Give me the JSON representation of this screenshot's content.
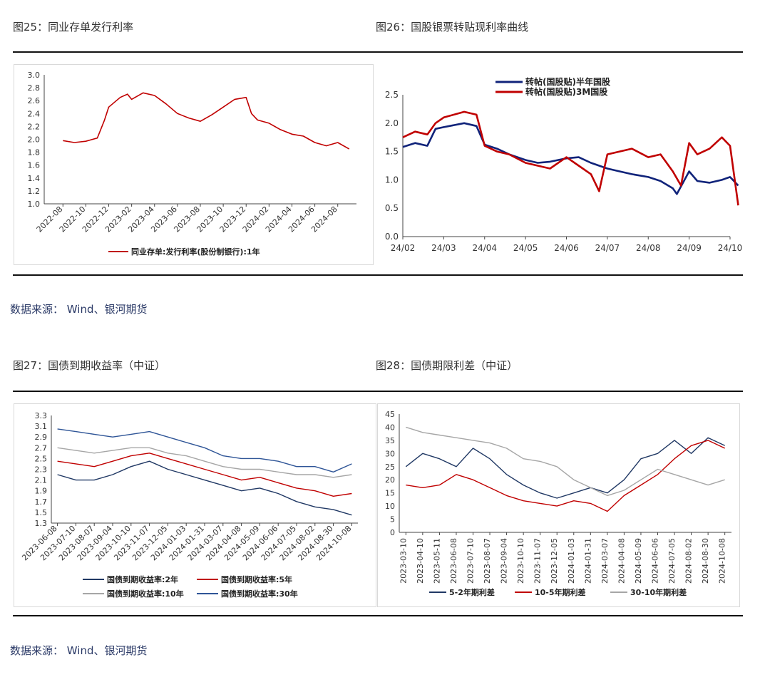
{
  "source_label": "数据来源：  Wind、银河期货",
  "colors": {
    "red": "#c00000",
    "navy": "#10237a",
    "navy2": "#203864",
    "grey": "#a6a6a6",
    "blue30": "#2f5597",
    "axis": "#333333"
  },
  "figures": [
    {
      "id": "fig25",
      "title": "图25：同业存单发行利率"
    },
    {
      "id": "fig26",
      "title": "图26：国股银票转贴现利率曲线"
    },
    {
      "id": "fig27",
      "title": "图27：国债到期收益率（中证）"
    },
    {
      "id": "fig28",
      "title": "图28：国债期限利差（中证）"
    }
  ],
  "chart_data": [
    {
      "id": "fig25",
      "type": "line",
      "x": [
        "2022-08",
        "2022-10",
        "2022-12",
        "2023-02",
        "2023-04",
        "2023-06",
        "2023-08",
        "2023-10",
        "2023-12",
        "2024-02",
        "2024-04",
        "2024-06",
        "2024-08"
      ],
      "ylim": [
        1.0,
        3.0
      ],
      "yticks": [
        "1.0",
        "1.2",
        "1.4",
        "1.6",
        "1.8",
        "2.0",
        "2.2",
        "2.4",
        "2.6",
        "2.8",
        "3.0"
      ],
      "grid": false,
      "legend_position": "bottom",
      "series": [
        {
          "name": "同业存单:发行利率(股份制银行):1年",
          "color": "#c00000",
          "points": [
            [
              "2022-08",
              1.98
            ],
            [
              "2022-09",
              1.95
            ],
            [
              "2022-10",
              1.97
            ],
            [
              "2022-11",
              2.02
            ],
            [
              "2022-11-20",
              2.3
            ],
            [
              "2022-12",
              2.5
            ],
            [
              "2023-01",
              2.65
            ],
            [
              "2023-01-20",
              2.7
            ],
            [
              "2023-02",
              2.62
            ],
            [
              "2023-03",
              2.72
            ],
            [
              "2023-04",
              2.68
            ],
            [
              "2023-05",
              2.55
            ],
            [
              "2023-06",
              2.4
            ],
            [
              "2023-07",
              2.33
            ],
            [
              "2023-08",
              2.28
            ],
            [
              "2023-09",
              2.38
            ],
            [
              "2023-10",
              2.5
            ],
            [
              "2023-11",
              2.62
            ],
            [
              "2023-12",
              2.65
            ],
            [
              "2023-12-15",
              2.4
            ],
            [
              "2024-01",
              2.3
            ],
            [
              "2024-02",
              2.25
            ],
            [
              "2024-03",
              2.15
            ],
            [
              "2024-04",
              2.08
            ],
            [
              "2024-05",
              2.05
            ],
            [
              "2024-06",
              1.95
            ],
            [
              "2024-07",
              1.9
            ],
            [
              "2024-08",
              1.95
            ],
            [
              "2024-09",
              1.85
            ]
          ]
        }
      ]
    },
    {
      "id": "fig26",
      "type": "line",
      "x": [
        "24/02",
        "24/03",
        "24/04",
        "24/05",
        "24/06",
        "24/07",
        "24/08",
        "24/09",
        "24/10"
      ],
      "ylim": [
        0.0,
        2.5
      ],
      "yticks": [
        "0.0",
        "0.5",
        "1.0",
        "1.5",
        "2.0",
        "2.5"
      ],
      "grid": false,
      "legend_position": "top",
      "series": [
        {
          "name": "转帖(国股贴)半年国股",
          "color": "#10237a",
          "points": [
            [
              "24/02",
              1.58
            ],
            [
              "24/02.3",
              1.65
            ],
            [
              "24/02.6",
              1.6
            ],
            [
              "24/02.8",
              1.9
            ],
            [
              "24/03",
              1.93
            ],
            [
              "24/03.5",
              2.0
            ],
            [
              "24/03.8",
              1.95
            ],
            [
              "24/04",
              1.62
            ],
            [
              "24/04.3",
              1.55
            ],
            [
              "24/04.6",
              1.45
            ],
            [
              "24/05",
              1.35
            ],
            [
              "24/05.3",
              1.3
            ],
            [
              "24/05.6",
              1.32
            ],
            [
              "24/06",
              1.38
            ],
            [
              "24/06.3",
              1.4
            ],
            [
              "24/06.6",
              1.3
            ],
            [
              "24/07",
              1.2
            ],
            [
              "24/07.3",
              1.15
            ],
            [
              "24/07.6",
              1.1
            ],
            [
              "24/08",
              1.05
            ],
            [
              "24/08.3",
              0.98
            ],
            [
              "24/08.6",
              0.85
            ],
            [
              "24/08.7",
              0.75
            ],
            [
              "24/09",
              1.15
            ],
            [
              "24/09.2",
              0.98
            ],
            [
              "24/09.5",
              0.95
            ],
            [
              "24/09.8",
              1.0
            ],
            [
              "24/10",
              1.05
            ],
            [
              "24/10.2",
              0.9
            ]
          ]
        },
        {
          "name": "转帖(国股贴)3M国股",
          "color": "#c00000",
          "points": [
            [
              "24/02",
              1.75
            ],
            [
              "24/02.3",
              1.85
            ],
            [
              "24/02.6",
              1.8
            ],
            [
              "24/02.8",
              2.0
            ],
            [
              "24/03",
              2.1
            ],
            [
              "24/03.5",
              2.2
            ],
            [
              "24/03.8",
              2.15
            ],
            [
              "24/04",
              1.6
            ],
            [
              "24/04.3",
              1.5
            ],
            [
              "24/04.6",
              1.45
            ],
            [
              "24/05",
              1.3
            ],
            [
              "24/05.3",
              1.25
            ],
            [
              "24/05.6",
              1.2
            ],
            [
              "24/06",
              1.4
            ],
            [
              "24/06.3",
              1.25
            ],
            [
              "24/06.6",
              1.1
            ],
            [
              "24/06.8",
              0.8
            ],
            [
              "24/07",
              1.45
            ],
            [
              "24/07.3",
              1.5
            ],
            [
              "24/07.6",
              1.55
            ],
            [
              "24/08",
              1.4
            ],
            [
              "24/08.3",
              1.45
            ],
            [
              "24/08.6",
              1.15
            ],
            [
              "24/08.8",
              0.9
            ],
            [
              "24/09",
              1.65
            ],
            [
              "24/09.2",
              1.45
            ],
            [
              "24/09.5",
              1.55
            ],
            [
              "24/09.8",
              1.75
            ],
            [
              "24/10",
              1.6
            ],
            [
              "24/10.2",
              0.55
            ]
          ]
        }
      ]
    },
    {
      "id": "fig27",
      "type": "line",
      "x": [
        "2023-06-08",
        "2023-07-10",
        "2023-08-07",
        "2023-09-04",
        "2023-10-10",
        "2023-11-07",
        "2023-12-05",
        "2024-01-03",
        "2024-01-31",
        "2024-03-07",
        "2024-04-08",
        "2024-05-09",
        "2024-06-06",
        "2024-07-05",
        "2024-08-02",
        "2024-08-30",
        "2024-10-08"
      ],
      "ylim": [
        1.3,
        3.3
      ],
      "yticks": [
        "1.3",
        "1.5",
        "1.7",
        "1.9",
        "2.1",
        "2.3",
        "2.5",
        "2.7",
        "2.9",
        "3.1",
        "3.3"
      ],
      "grid": false,
      "legend_position": "bottom",
      "series": [
        {
          "name": "国债到期收益率:2年",
          "color": "#203864",
          "values": [
            2.2,
            2.1,
            2.1,
            2.2,
            2.35,
            2.45,
            2.3,
            2.2,
            2.1,
            2.0,
            1.9,
            1.95,
            1.85,
            1.7,
            1.6,
            1.55,
            1.45
          ]
        },
        {
          "name": "国债到期收益率:5年",
          "color": "#c00000",
          "values": [
            2.45,
            2.4,
            2.35,
            2.45,
            2.55,
            2.6,
            2.5,
            2.4,
            2.3,
            2.2,
            2.1,
            2.15,
            2.05,
            1.95,
            1.9,
            1.8,
            1.85
          ]
        },
        {
          "name": "国债到期收益率:10年",
          "color": "#a6a6a6",
          "values": [
            2.7,
            2.65,
            2.6,
            2.65,
            2.7,
            2.7,
            2.6,
            2.55,
            2.45,
            2.35,
            2.3,
            2.3,
            2.25,
            2.2,
            2.2,
            2.15,
            2.2
          ]
        },
        {
          "name": "国债到期收益率:30年",
          "color": "#2f5597",
          "values": [
            3.05,
            3.0,
            2.95,
            2.9,
            2.95,
            3.0,
            2.9,
            2.8,
            2.7,
            2.55,
            2.5,
            2.5,
            2.45,
            2.35,
            2.35,
            2.25,
            2.4
          ]
        }
      ]
    },
    {
      "id": "fig28",
      "type": "line",
      "x": [
        "2023-03-10",
        "2023-04-10",
        "2023-05-11",
        "2023-06-08",
        "2023-07-10",
        "2023-08-07",
        "2023-09-04",
        "2023-10-10",
        "2023-11-07",
        "2023-12-05",
        "2024-01-03",
        "2024-01-31",
        "2024-03-07",
        "2024-04-08",
        "2024-05-09",
        "2024-06-06",
        "2024-07-05",
        "2024-08-02",
        "2024-08-30",
        "2024-10-08"
      ],
      "ylim": [
        0,
        45
      ],
      "yticks": [
        "0",
        "5",
        "10",
        "15",
        "20",
        "25",
        "30",
        "35",
        "40",
        "45"
      ],
      "grid": false,
      "legend_position": "bottom",
      "series": [
        {
          "name": "5-2年期利差",
          "color": "#203864",
          "values": [
            25,
            30,
            28,
            25,
            32,
            28,
            22,
            18,
            15,
            13,
            15,
            17,
            15,
            20,
            28,
            30,
            35,
            30,
            36,
            33
          ]
        },
        {
          "name": "10-5年期利差",
          "color": "#c00000",
          "values": [
            18,
            17,
            18,
            22,
            20,
            17,
            14,
            12,
            11,
            10,
            12,
            11,
            8,
            14,
            18,
            22,
            28,
            33,
            35,
            32
          ]
        },
        {
          "name": "30-10年期利差",
          "color": "#a6a6a6",
          "values": [
            40,
            38,
            37,
            36,
            35,
            34,
            32,
            28,
            27,
            25,
            20,
            17,
            14,
            16,
            20,
            24,
            22,
            20,
            18,
            20
          ]
        }
      ]
    }
  ]
}
